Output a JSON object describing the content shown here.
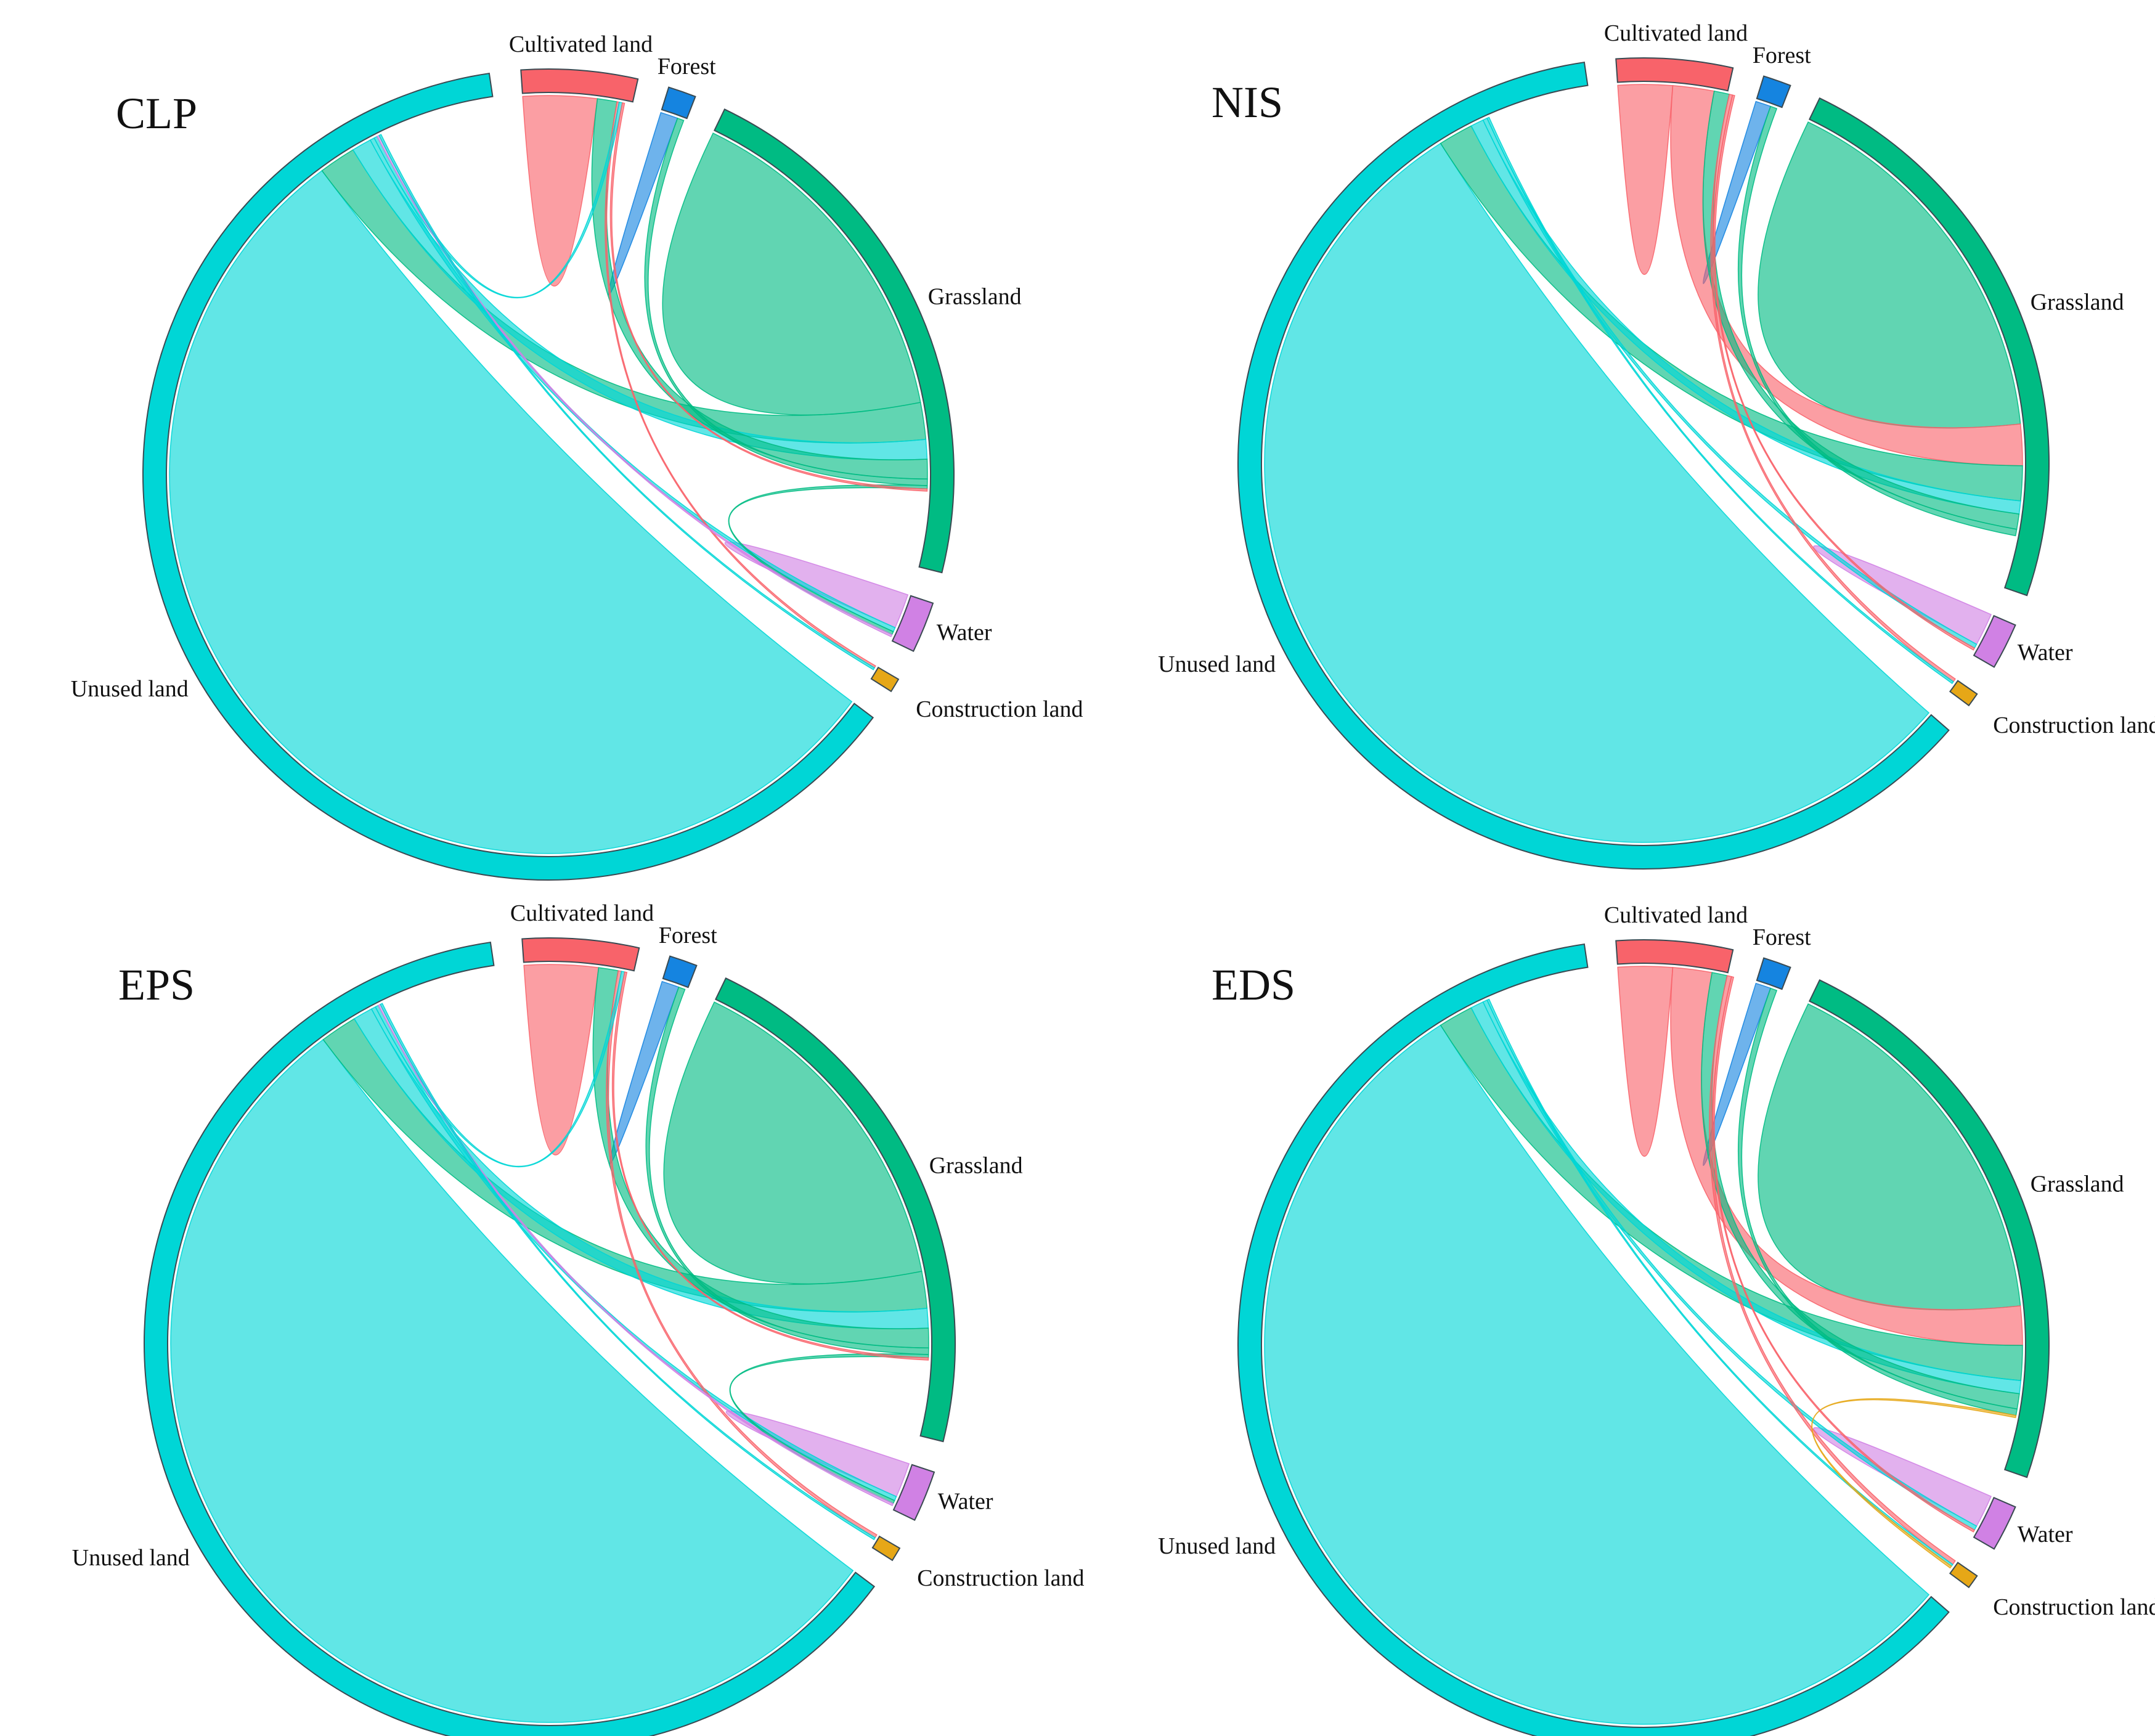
{
  "chart_data": [
    {
      "type": "chord",
      "title": "CLP",
      "categories": [
        "Cultivated land",
        "Forest",
        "Grassland",
        "Water",
        "Construction land",
        "Unused land"
      ],
      "sectors": [
        {
          "name": "Cultivated land",
          "value": 5.0,
          "color": "#f8636a"
        },
        {
          "name": "Forest",
          "value": 1.2,
          "color": "#1584e0"
        },
        {
          "name": "Grassland",
          "value": 23.5,
          "color": "#00bb83"
        },
        {
          "name": "Water",
          "value": 2.2,
          "color": "#d081e4"
        },
        {
          "name": "Construction land",
          "value": 0.6,
          "color": "#e6a717"
        },
        {
          "name": "Unused land",
          "value": 67.5,
          "color": "#00d6d6"
        }
      ],
      "links": [
        {
          "from": "Unused land",
          "to": "Unused land",
          "value": 59.0
        },
        {
          "from": "Grassland",
          "to": "Grassland",
          "value": 16.0
        },
        {
          "from": "Cultivated land",
          "to": "Cultivated land",
          "value": 3.4
        },
        {
          "from": "Forest",
          "to": "Forest",
          "value": 0.8
        },
        {
          "from": "Water",
          "to": "Water",
          "value": 1.6
        },
        {
          "from": "Grassland",
          "to": "Unused land",
          "value": 1.7
        },
        {
          "from": "Unused land",
          "to": "Grassland",
          "value": 0.9
        },
        {
          "from": "Grassland",
          "to": "Cultivated land",
          "value": 0.9
        },
        {
          "from": "Grassland",
          "to": "Forest",
          "value": 0.3
        },
        {
          "from": "Unused land",
          "to": "Water",
          "value": 0.2
        },
        {
          "from": "Cultivated land",
          "to": "Construction land",
          "value": 0.1
        },
        {
          "from": "Unused land",
          "to": "Cultivated land",
          "value": 0.15
        },
        {
          "from": "Grassland",
          "to": "Water",
          "value": 0.15
        },
        {
          "from": "Cultivated land",
          "to": "Grassland",
          "value": 0.1
        },
        {
          "from": "Water",
          "to": "Unused land",
          "value": 0.1
        },
        {
          "from": "Unused land",
          "to": "Construction land",
          "value": 0.1
        }
      ]
    },
    {
      "type": "chord",
      "title": "NIS",
      "categories": [
        "Cultivated land",
        "Forest",
        "Grassland",
        "Water",
        "Construction land",
        "Unused land"
      ],
      "sectors": [
        {
          "name": "Cultivated land",
          "value": 5.0,
          "color": "#f8636a"
        },
        {
          "name": "Forest",
          "value": 1.2,
          "color": "#1584e0"
        },
        {
          "name": "Grassland",
          "value": 25.0,
          "color": "#00bb83"
        },
        {
          "name": "Water",
          "value": 2.0,
          "color": "#d081e4"
        },
        {
          "name": "Construction land",
          "value": 0.6,
          "color": "#e6a717"
        },
        {
          "name": "Unused land",
          "value": 66.2,
          "color": "#00d6d6"
        }
      ],
      "links": [
        {
          "from": "Unused land",
          "to": "Unused land",
          "value": 59.0
        },
        {
          "from": "Grassland",
          "to": "Grassland",
          "value": 17.5
        },
        {
          "from": "Cultivated land",
          "to": "Cultivated land",
          "value": 2.5
        },
        {
          "from": "Forest",
          "to": "Forest",
          "value": 0.7
        },
        {
          "from": "Water",
          "to": "Water",
          "value": 1.5
        },
        {
          "from": "Cultivated land",
          "to": "Grassland",
          "value": 1.9
        },
        {
          "from": "Grassland",
          "to": "Unused land",
          "value": 1.6
        },
        {
          "from": "Unused land",
          "to": "Grassland",
          "value": 0.6
        },
        {
          "from": "Grassland",
          "to": "Cultivated land",
          "value": 0.7
        },
        {
          "from": "Grassland",
          "to": "Forest",
          "value": 0.3
        },
        {
          "from": "Unused land",
          "to": "Water",
          "value": 0.2
        },
        {
          "from": "Cultivated land",
          "to": "Construction land",
          "value": 0.15
        },
        {
          "from": "Unused land",
          "to": "Construction land",
          "value": 0.1
        },
        {
          "from": "Cultivated land",
          "to": "Water",
          "value": 0.1
        }
      ]
    },
    {
      "type": "chord",
      "title": "EPS",
      "categories": [
        "Cultivated land",
        "Forest",
        "Grassland",
        "Water",
        "Construction land",
        "Unused land"
      ],
      "sectors": [
        {
          "name": "Cultivated land",
          "value": 5.0,
          "color": "#f8636a"
        },
        {
          "name": "Forest",
          "value": 1.2,
          "color": "#1584e0"
        },
        {
          "name": "Grassland",
          "value": 23.5,
          "color": "#00bb83"
        },
        {
          "name": "Water",
          "value": 2.2,
          "color": "#d081e4"
        },
        {
          "name": "Construction land",
          "value": 0.6,
          "color": "#e6a717"
        },
        {
          "name": "Unused land",
          "value": 67.5,
          "color": "#00d6d6"
        }
      ],
      "links": [
        {
          "from": "Unused land",
          "to": "Unused land",
          "value": 59.0
        },
        {
          "from": "Grassland",
          "to": "Grassland",
          "value": 16.0
        },
        {
          "from": "Cultivated land",
          "to": "Cultivated land",
          "value": 3.4
        },
        {
          "from": "Forest",
          "to": "Forest",
          "value": 0.8
        },
        {
          "from": "Water",
          "to": "Water",
          "value": 1.6
        },
        {
          "from": "Grassland",
          "to": "Unused land",
          "value": 1.7
        },
        {
          "from": "Unused land",
          "to": "Grassland",
          "value": 0.9
        },
        {
          "from": "Grassland",
          "to": "Cultivated land",
          "value": 0.9
        },
        {
          "from": "Grassland",
          "to": "Forest",
          "value": 0.3
        },
        {
          "from": "Unused land",
          "to": "Water",
          "value": 0.2
        },
        {
          "from": "Cultivated land",
          "to": "Construction land",
          "value": 0.15
        },
        {
          "from": "Unused land",
          "to": "Cultivated land",
          "value": 0.15
        },
        {
          "from": "Grassland",
          "to": "Water",
          "value": 0.15
        },
        {
          "from": "Cultivated land",
          "to": "Grassland",
          "value": 0.1
        },
        {
          "from": "Water",
          "to": "Unused land",
          "value": 0.1
        },
        {
          "from": "Unused land",
          "to": "Construction land",
          "value": 0.1
        }
      ]
    },
    {
      "type": "chord",
      "title": "EDS",
      "categories": [
        "Cultivated land",
        "Forest",
        "Grassland",
        "Water",
        "Construction land",
        "Unused land"
      ],
      "sectors": [
        {
          "name": "Cultivated land",
          "value": 5.0,
          "color": "#f8636a"
        },
        {
          "name": "Forest",
          "value": 1.2,
          "color": "#1584e0"
        },
        {
          "name": "Grassland",
          "value": 25.0,
          "color": "#00bb83"
        },
        {
          "name": "Water",
          "value": 2.0,
          "color": "#d081e4"
        },
        {
          "name": "Construction land",
          "value": 0.6,
          "color": "#e6a717"
        },
        {
          "name": "Unused land",
          "value": 66.2,
          "color": "#00d6d6"
        }
      ],
      "links": [
        {
          "from": "Unused land",
          "to": "Unused land",
          "value": 59.0
        },
        {
          "from": "Grassland",
          "to": "Grassland",
          "value": 17.5
        },
        {
          "from": "Cultivated land",
          "to": "Cultivated land",
          "value": 2.5
        },
        {
          "from": "Forest",
          "to": "Forest",
          "value": 0.7
        },
        {
          "from": "Water",
          "to": "Water",
          "value": 1.5
        },
        {
          "from": "Cultivated land",
          "to": "Grassland",
          "value": 1.8
        },
        {
          "from": "Grassland",
          "to": "Unused land",
          "value": 1.6
        },
        {
          "from": "Unused land",
          "to": "Grassland",
          "value": 0.6
        },
        {
          "from": "Grassland",
          "to": "Cultivated land",
          "value": 0.7
        },
        {
          "from": "Grassland",
          "to": "Forest",
          "value": 0.3
        },
        {
          "from": "Unused land",
          "to": "Water",
          "value": 0.2
        },
        {
          "from": "Cultivated land",
          "to": "Construction land",
          "value": 0.2
        },
        {
          "from": "Unused land",
          "to": "Construction land",
          "value": 0.1
        },
        {
          "from": "Construction land",
          "to": "Grassland",
          "value": 0.1
        },
        {
          "from": "Cultivated land",
          "to": "Water",
          "value": 0.1
        }
      ]
    }
  ]
}
